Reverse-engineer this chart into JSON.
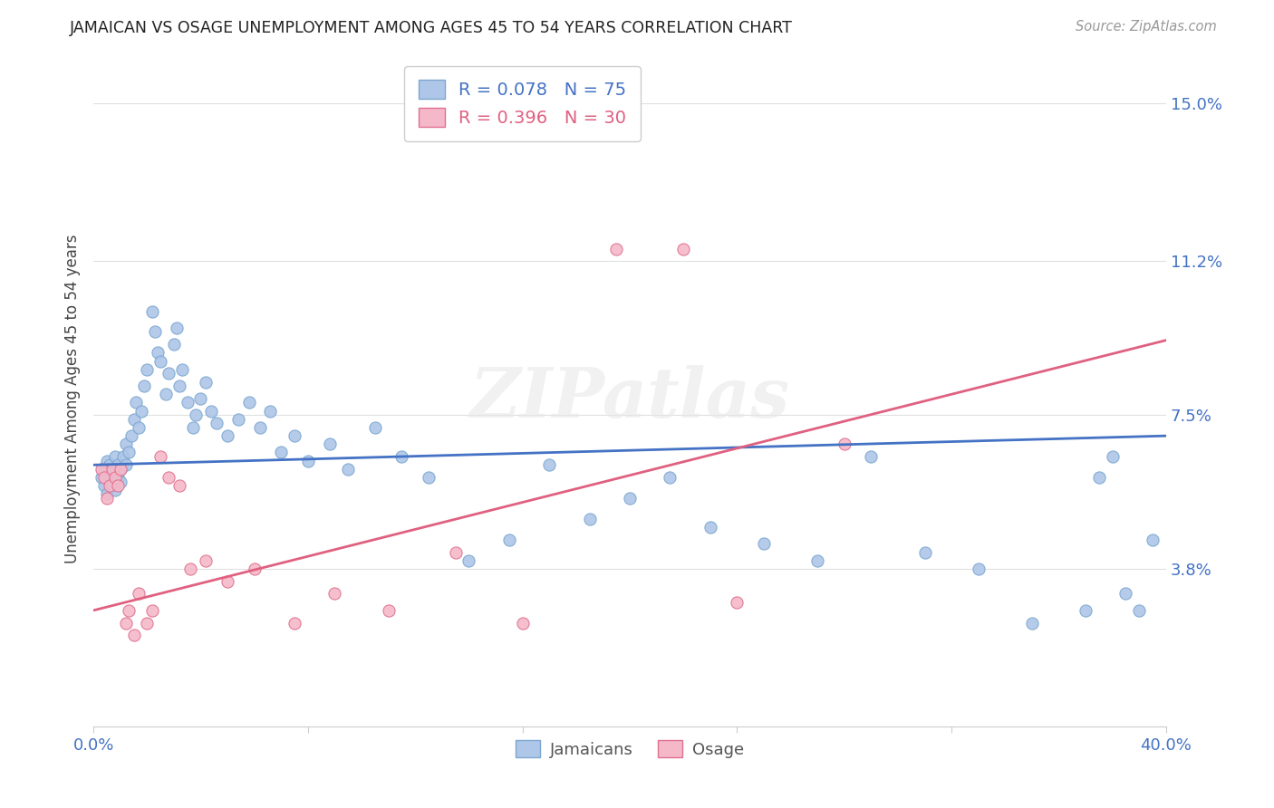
{
  "title": "JAMAICAN VS OSAGE UNEMPLOYMENT AMONG AGES 45 TO 54 YEARS CORRELATION CHART",
  "source": "Source: ZipAtlas.com",
  "ylabel": "Unemployment Among Ages 45 to 54 years",
  "xlim": [
    0.0,
    0.4
  ],
  "ylim": [
    0.0,
    0.158
  ],
  "yticks": [
    0.038,
    0.075,
    0.112,
    0.15
  ],
  "ytick_labels": [
    "3.8%",
    "7.5%",
    "11.2%",
    "15.0%"
  ],
  "xticks": [
    0.0,
    0.08,
    0.16,
    0.24,
    0.32,
    0.4
  ],
  "xtick_labels": [
    "0.0%",
    "",
    "",
    "",
    "",
    "40.0%"
  ],
  "background_color": "#ffffff",
  "grid_color": "#e0e0e0",
  "tick_color": "#4472c4",
  "jamaicans_color": "#aec6e8",
  "jamaicans_edge_color": "#7ba7d0",
  "osage_color": "#f5b8c8",
  "osage_edge_color": "#e07090",
  "blue_line_color": "#4472c4",
  "pink_line_color": "#e06080",
  "legend_label_jamaicans": "Jamaicans",
  "legend_label_osage": "Osage",
  "R_jamaicans": 0.078,
  "N_jamaicans": 75,
  "R_osage": 0.396,
  "N_osage": 30,
  "watermark": "ZIPatlas",
  "jamaicans_x": [
    0.003,
    0.004,
    0.004,
    0.005,
    0.005,
    0.006,
    0.006,
    0.007,
    0.007,
    0.008,
    0.008,
    0.009,
    0.009,
    0.01,
    0.01,
    0.011,
    0.012,
    0.012,
    0.013,
    0.014,
    0.015,
    0.016,
    0.017,
    0.018,
    0.019,
    0.02,
    0.022,
    0.023,
    0.024,
    0.025,
    0.027,
    0.028,
    0.03,
    0.031,
    0.032,
    0.033,
    0.035,
    0.037,
    0.038,
    0.04,
    0.042,
    0.044,
    0.046,
    0.05,
    0.054,
    0.058,
    0.062,
    0.066,
    0.07,
    0.075,
    0.08,
    0.088,
    0.095,
    0.105,
    0.115,
    0.125,
    0.14,
    0.155,
    0.17,
    0.185,
    0.2,
    0.215,
    0.23,
    0.25,
    0.27,
    0.29,
    0.31,
    0.33,
    0.35,
    0.37,
    0.375,
    0.38,
    0.385,
    0.39,
    0.395
  ],
  "jamaicans_y": [
    0.06,
    0.058,
    0.062,
    0.056,
    0.064,
    0.059,
    0.063,
    0.058,
    0.061,
    0.057,
    0.065,
    0.06,
    0.063,
    0.059,
    0.062,
    0.065,
    0.068,
    0.063,
    0.066,
    0.07,
    0.074,
    0.078,
    0.072,
    0.076,
    0.082,
    0.086,
    0.1,
    0.095,
    0.09,
    0.088,
    0.08,
    0.085,
    0.092,
    0.096,
    0.082,
    0.086,
    0.078,
    0.072,
    0.075,
    0.079,
    0.083,
    0.076,
    0.073,
    0.07,
    0.074,
    0.078,
    0.072,
    0.076,
    0.066,
    0.07,
    0.064,
    0.068,
    0.062,
    0.072,
    0.065,
    0.06,
    0.04,
    0.045,
    0.063,
    0.05,
    0.055,
    0.06,
    0.048,
    0.044,
    0.04,
    0.065,
    0.042,
    0.038,
    0.025,
    0.028,
    0.06,
    0.065,
    0.032,
    0.028,
    0.045
  ],
  "osage_x": [
    0.003,
    0.004,
    0.005,
    0.006,
    0.007,
    0.008,
    0.009,
    0.01,
    0.012,
    0.013,
    0.015,
    0.017,
    0.02,
    0.022,
    0.025,
    0.028,
    0.032,
    0.036,
    0.042,
    0.05,
    0.06,
    0.075,
    0.09,
    0.11,
    0.135,
    0.16,
    0.195,
    0.22,
    0.24,
    0.28
  ],
  "osage_y": [
    0.062,
    0.06,
    0.055,
    0.058,
    0.062,
    0.06,
    0.058,
    0.062,
    0.025,
    0.028,
    0.022,
    0.032,
    0.025,
    0.028,
    0.065,
    0.06,
    0.058,
    0.038,
    0.04,
    0.035,
    0.038,
    0.025,
    0.032,
    0.028,
    0.042,
    0.025,
    0.115,
    0.115,
    0.03,
    0.068
  ],
  "blue_line_x": [
    0.0,
    0.4
  ],
  "blue_line_y": [
    0.063,
    0.07
  ],
  "pink_line_x": [
    0.0,
    0.4
  ],
  "pink_line_y": [
    0.028,
    0.093
  ]
}
